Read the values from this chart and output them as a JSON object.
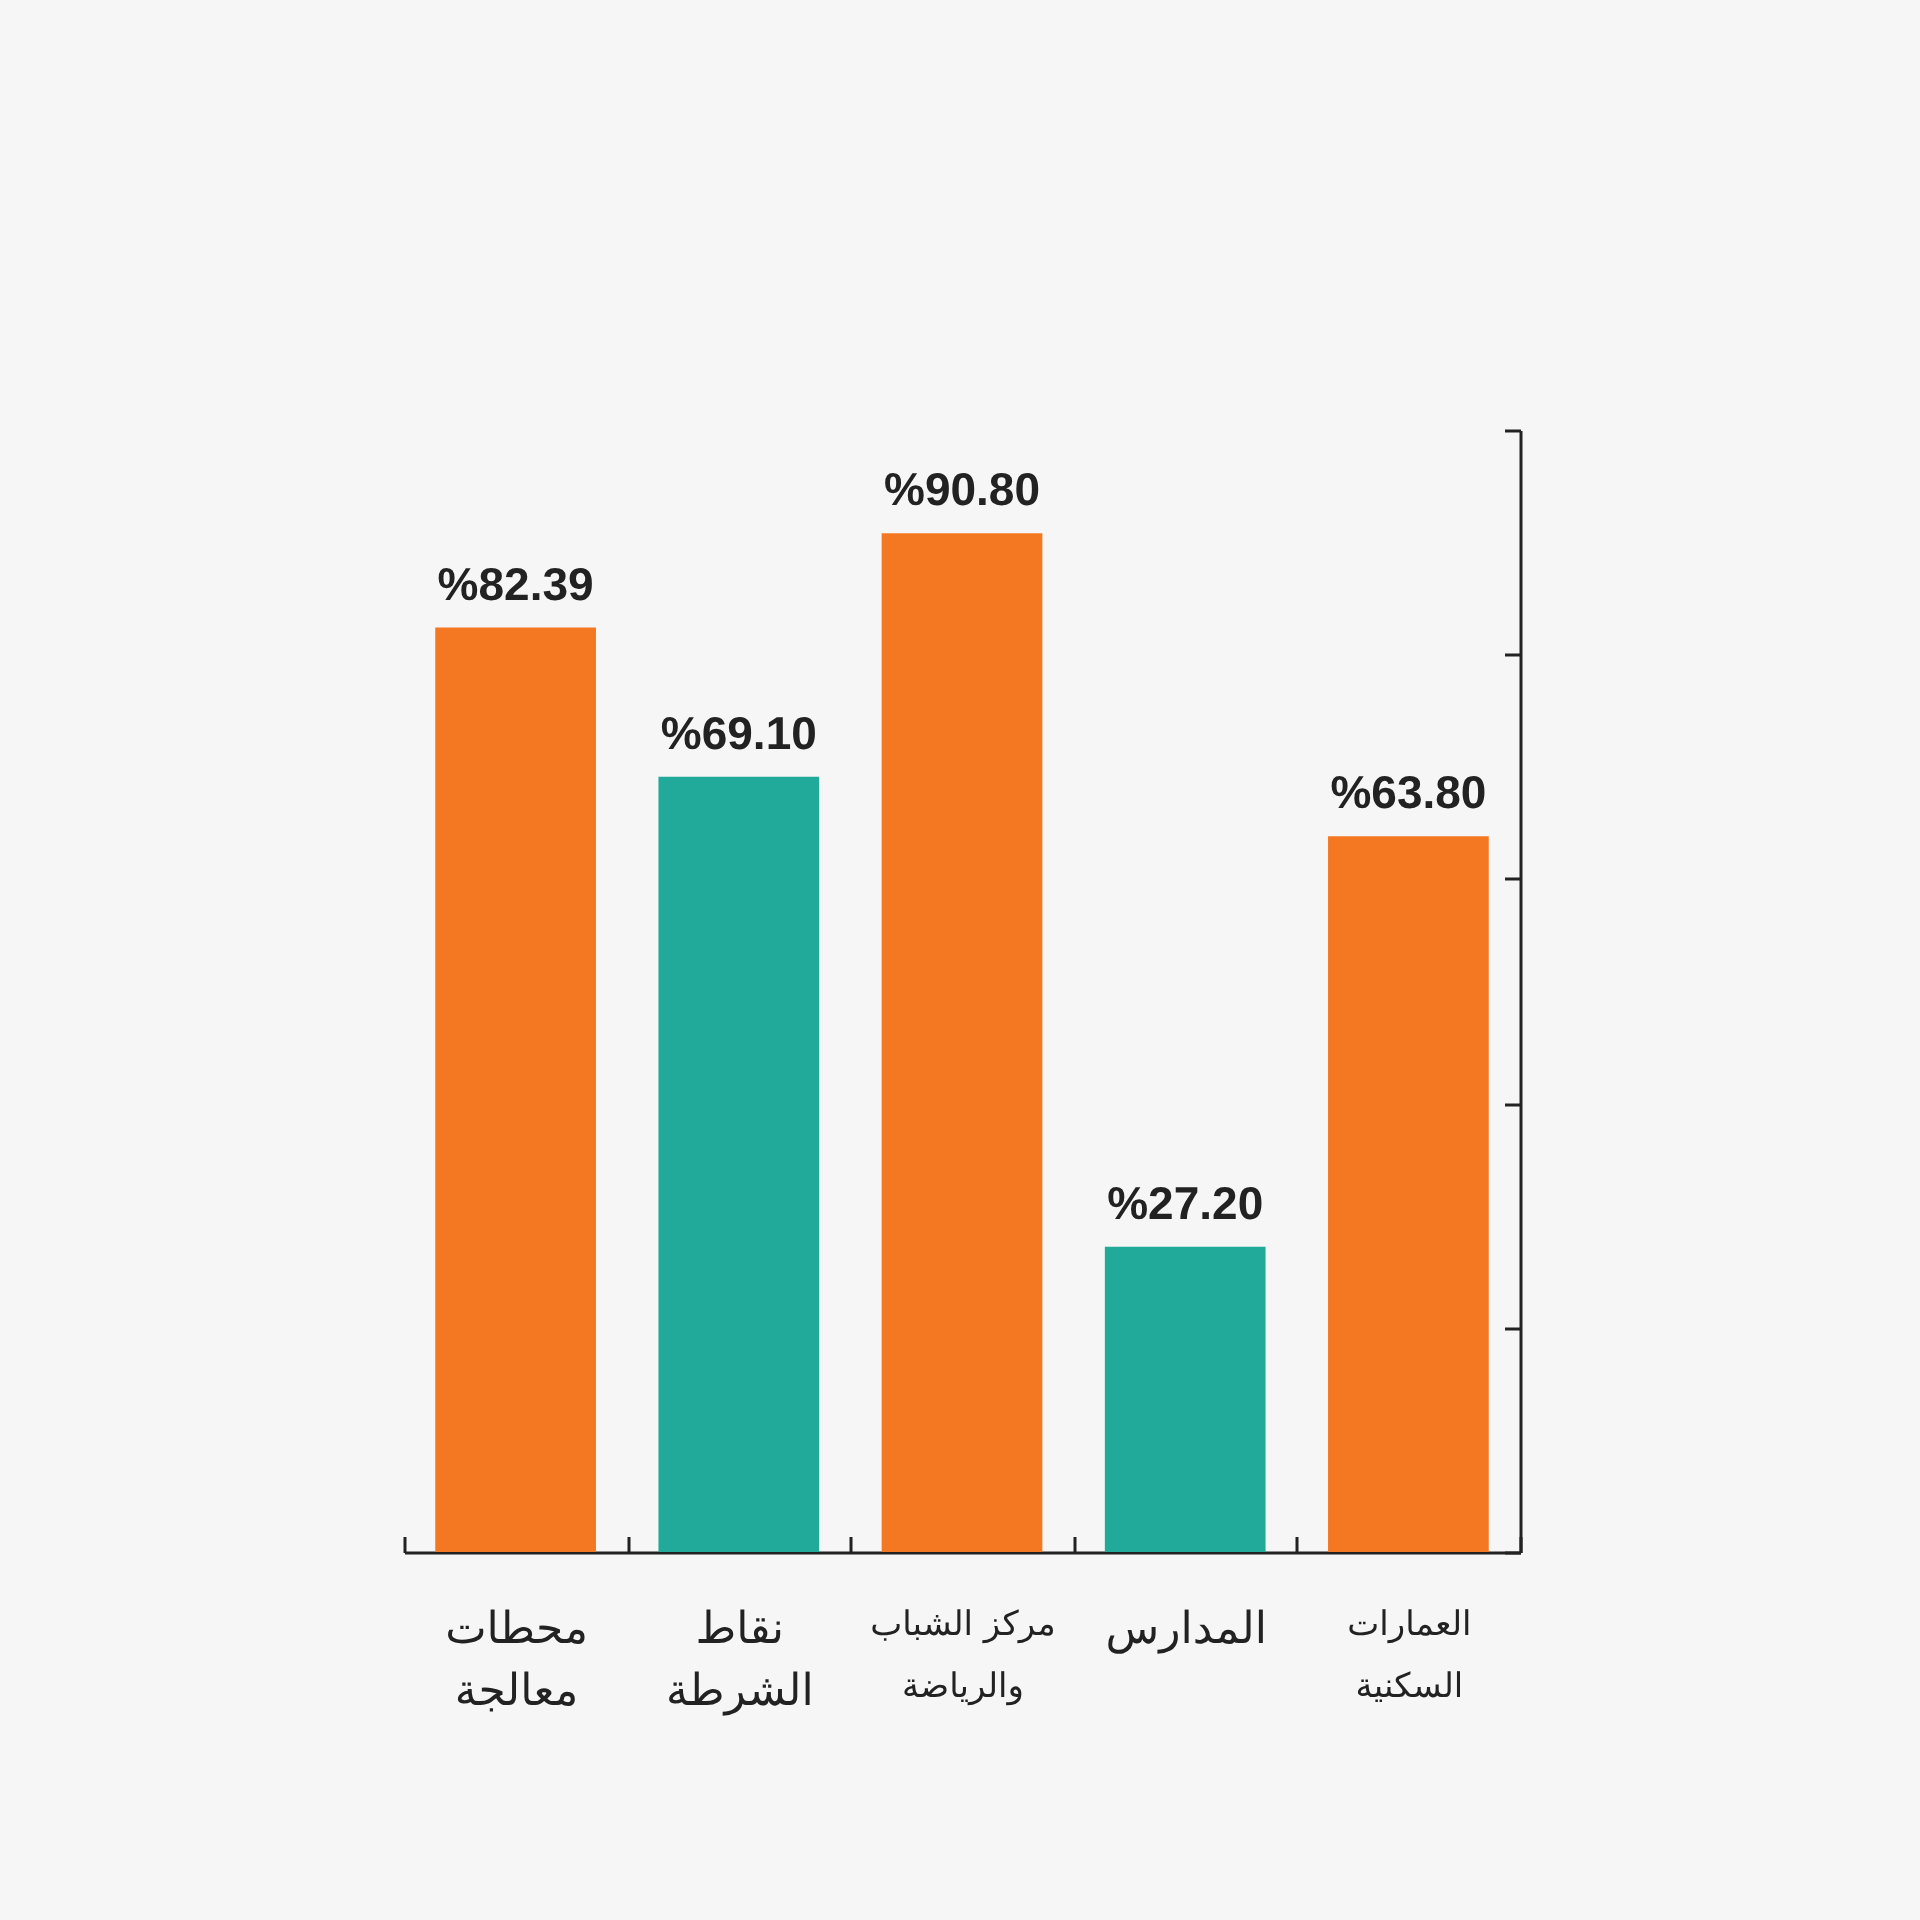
{
  "chart_data": {
    "type": "bar",
    "categories": [
      "محطات معالجة",
      "نقاط الشرطة",
      "مركز الشباب والرياضة",
      "المدارس",
      "العمارات السكنية"
    ],
    "values": [
      82.39,
      69.1,
      90.8,
      27.2,
      63.8
    ],
    "colors": [
      "#f47721",
      "#21aa99",
      "#f47721",
      "#21aa99",
      "#f47721"
    ],
    "value_labels": [
      "%82.39",
      "%69.10",
      "%90.80",
      "%27.20",
      "%63.80"
    ],
    "ylim": [
      0,
      100
    ],
    "yticks": [
      {
        "value": 0,
        "label": null
      },
      {
        "value": 20,
        "label": null
      },
      {
        "value": 40,
        "label": null
      },
      {
        "value": 60,
        "label": null
      },
      {
        "value": 80,
        "label": null
      },
      {
        "value": 100,
        "label": null
      }
    ],
    "tick_labels": "x"
  }
}
